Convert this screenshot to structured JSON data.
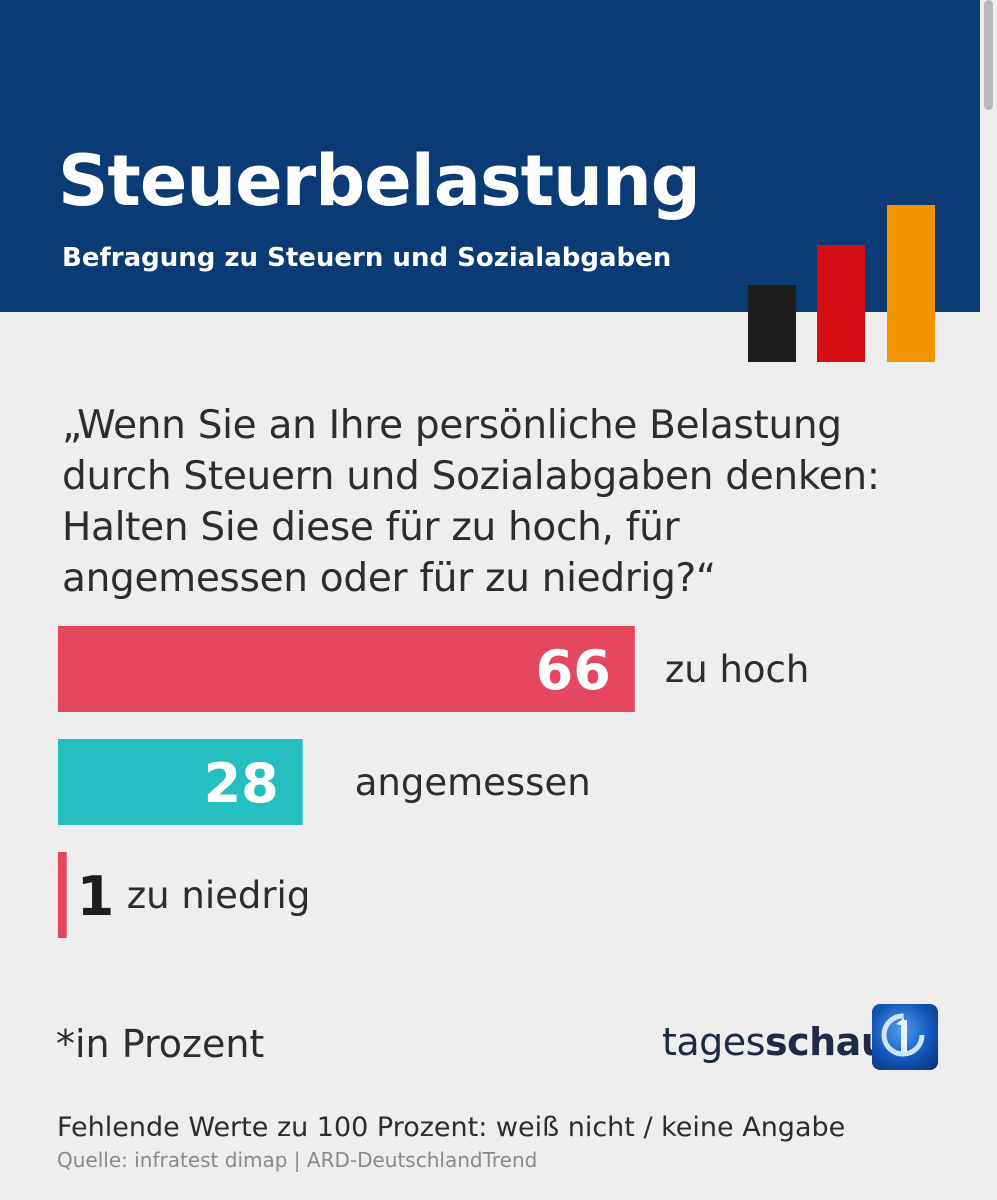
{
  "header": {
    "title": "Steuerbelastung",
    "subtitle": "Befragung zu Steuern und Sozialabgaben",
    "colors": {
      "background": "#0b3b74",
      "flag": [
        "#1d1d1b",
        "#d40e14",
        "#f29400"
      ]
    }
  },
  "question": "„Wenn Sie an Ihre persönliche Belastung durch Steuern und Sozialabgaben denken: Halten Sie diese für zu hoch, für angemessen oder für zu niedrig?“",
  "chart_data": {
    "type": "bar",
    "orientation": "horizontal",
    "categories": [
      "zu hoch",
      "angemessen",
      "zu niedrig"
    ],
    "values": [
      66,
      28,
      1
    ],
    "colors": [
      "#e4475f",
      "#25bfc1",
      "#e4475f"
    ],
    "xlim": [
      0,
      100
    ],
    "grid": false,
    "legend": "none"
  },
  "unit_note": "*in Prozent",
  "logo": {
    "text_regular": "tages",
    "text_bold": "schau",
    "icon": "tagesschau-logo-icon"
  },
  "footnote": "Fehlende Werte zu 100 Prozent: weiß nicht / keine Angabe",
  "source": "Quelle: infratest dimap | ARD-DeutschlandTrend"
}
